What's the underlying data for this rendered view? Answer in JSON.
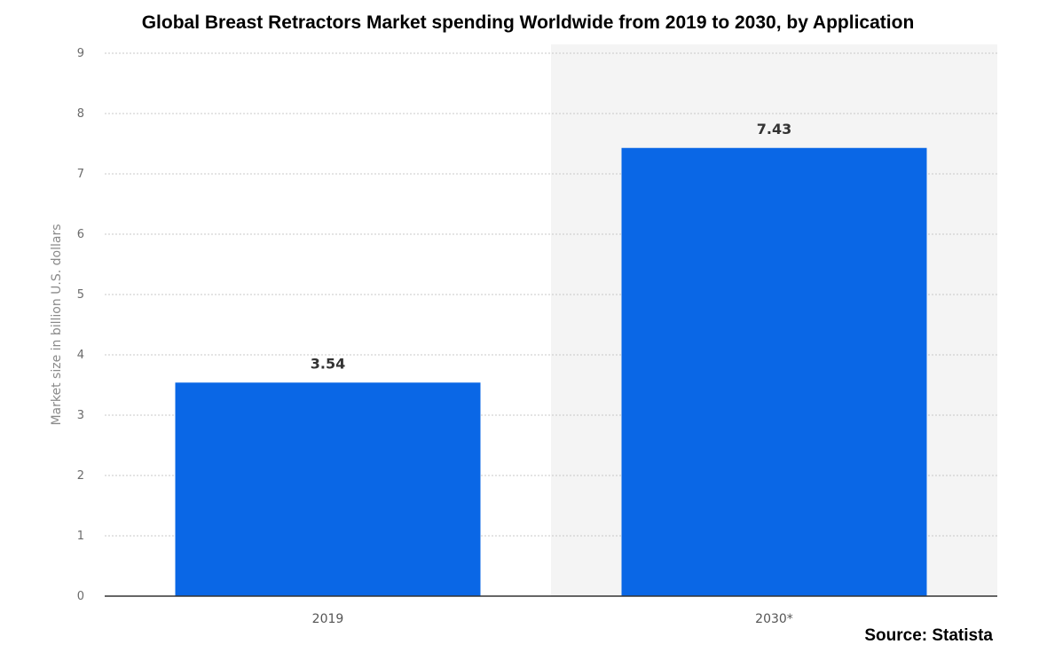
{
  "title": "Global Breast Retractors Market spending Worldwide from 2019 to 2030, by Application",
  "source": "Source: Statista",
  "colors": {
    "bar": "#0a67e6",
    "highlight_band": "#f4f4f4",
    "grid": "#c8c8c8",
    "axis": "#333333"
  },
  "chart_data": {
    "type": "bar",
    "title": "Global Breast Retractors Market spending Worldwide from 2019 to 2030, by Application",
    "categories": [
      "2019",
      "2030*"
    ],
    "values": [
      3.54,
      7.43
    ],
    "value_labels": [
      "3.54",
      "7.43"
    ],
    "xlabel": "",
    "ylabel": "Market size in billion U.S. dollars",
    "ylim": [
      0,
      9
    ],
    "yticks": [
      0,
      1,
      2,
      3,
      4,
      5,
      6,
      7,
      8,
      9
    ],
    "grid": true,
    "highlighted_category": "2030*"
  }
}
